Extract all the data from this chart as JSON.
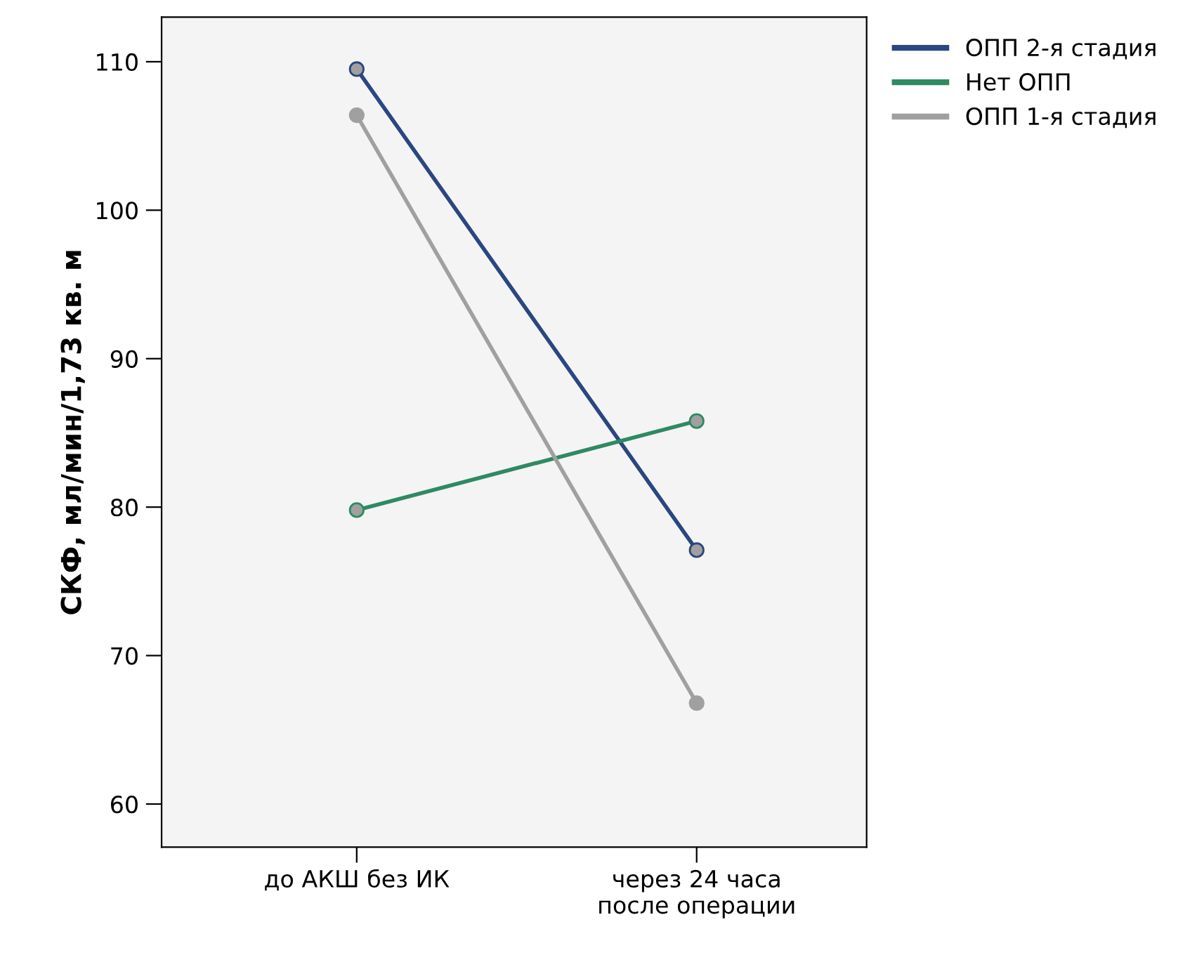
{
  "chart_data": {
    "type": "line",
    "ylabel": "СКФ, мл/мин/1,73 кв. м",
    "categories": [
      "до АКШ без ИК",
      "через 24 часа\nпосле операции"
    ],
    "series": [
      {
        "name": "ОПП 2-я стадия",
        "color": "#2b4680",
        "values": [
          109.5,
          77.1
        ]
      },
      {
        "name": "Нет ОПП",
        "color": "#2e8a62",
        "values": [
          79.8,
          85.8
        ]
      },
      {
        "name": "ОПП 1-я стадия",
        "color": "#a0a0a0",
        "values": [
          106.4,
          66.8
        ]
      }
    ],
    "ylim": [
      57.1,
      113
    ],
    "yticks": [
      60,
      70,
      80,
      90,
      100,
      110
    ],
    "grid": false,
    "legend": "top right",
    "marker": "circle",
    "line_style": "solid"
  }
}
